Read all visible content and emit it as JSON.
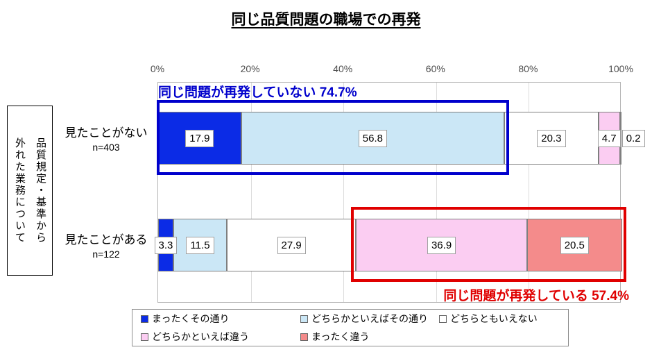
{
  "title": "同じ品質問題の職場での再発",
  "side_label_lines": [
    "品質規定・基準から",
    "外れた業務について"
  ],
  "chart_data": {
    "type": "bar",
    "orientation": "horizontal-stacked",
    "x_axis": {
      "ticks": [
        "0%",
        "20%",
        "40%",
        "60%",
        "80%",
        "100%"
      ],
      "min": 0,
      "max": 100,
      "grid": true
    },
    "categories": [
      {
        "label": "見たことがない",
        "n_label": "n=403"
      },
      {
        "label": "見たことがある",
        "n_label": "n=122"
      }
    ],
    "series": [
      {
        "name": "まったくその通り",
        "color": "#0b2be6",
        "values": [
          17.9,
          3.3
        ]
      },
      {
        "name": "どちらかといえばその通り",
        "color": "#cbe7f6",
        "values": [
          56.8,
          11.5
        ]
      },
      {
        "name": "どちらともいえない",
        "color": "#ffffff",
        "values": [
          20.3,
          27.9
        ]
      },
      {
        "name": "どちらかといえば違う",
        "color": "#fbcdf2",
        "values": [
          4.7,
          36.9
        ]
      },
      {
        "name": "まったく違う",
        "color": "#f48b8b",
        "values": [
          0.2,
          20.5
        ]
      }
    ],
    "annotations": [
      {
        "row": 0,
        "text": "同じ問題が再発していない",
        "value_text": "74.7%",
        "color": "#0000cc",
        "from_pct": 0,
        "to_pct": 74.7,
        "position": "above"
      },
      {
        "row": 1,
        "text": "同じ問題が再発している",
        "value_text": "57.4%",
        "color": "#e00000",
        "from_pct": 42.7,
        "to_pct": 100,
        "position": "below"
      }
    ],
    "legend_position": "bottom"
  }
}
